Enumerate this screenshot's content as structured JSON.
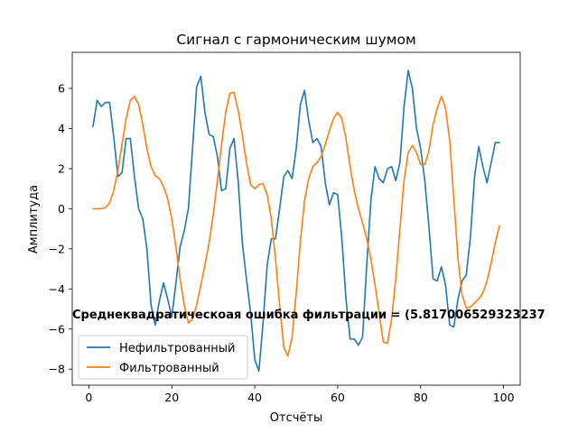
{
  "chart_data": {
    "type": "line",
    "title": "Сигнал с гармоническим шумом",
    "xlabel": "Отсчёты",
    "ylabel": "Амплитуда",
    "xlim": [
      -4,
      104
    ],
    "ylim": [
      -8.8,
      7.8
    ],
    "xticks": [
      0,
      20,
      40,
      60,
      80,
      100
    ],
    "yticks": [
      -8,
      -6,
      -4,
      -2,
      0,
      2,
      4,
      6
    ],
    "grid": false,
    "legend_position": "lower-left",
    "annotation": "Среднеквадратическоая ошибка фильтрации = (5.817006529323237",
    "series": [
      {
        "name": "Нефильтрованный",
        "color": "#1f77b4",
        "x": [
          1,
          2,
          3,
          4,
          5,
          6,
          7,
          8,
          9,
          10,
          11,
          12,
          13,
          14,
          15,
          16,
          17,
          18,
          19,
          20,
          21,
          22,
          23,
          24,
          25,
          26,
          27,
          28,
          29,
          30,
          31,
          32,
          33,
          34,
          35,
          36,
          37,
          38,
          39,
          40,
          41,
          42,
          43,
          44,
          45,
          46,
          47,
          48,
          49,
          50,
          51,
          52,
          53,
          54,
          55,
          56,
          57,
          58,
          59,
          60,
          61,
          62,
          63,
          64,
          65,
          66,
          67,
          68,
          69,
          70,
          71,
          72,
          73,
          74,
          75,
          76,
          77,
          78,
          79,
          80,
          81,
          82,
          83,
          84,
          85,
          86,
          87,
          88,
          89,
          90,
          91,
          92,
          93,
          94,
          95,
          96,
          97,
          98,
          99
        ],
        "values": [
          4.1,
          5.4,
          5.1,
          5.3,
          5.3,
          3.6,
          1.6,
          1.8,
          3.5,
          3.5,
          1.6,
          0.0,
          -0.5,
          -2.0,
          -4.8,
          -5.8,
          -4.6,
          -3.7,
          -4.5,
          -5.4,
          -3.7,
          -1.9,
          -1.1,
          0.0,
          3.0,
          6.1,
          6.6,
          4.8,
          3.7,
          3.6,
          2.6,
          0.9,
          1.0,
          3.0,
          3.5,
          1.4,
          -1.7,
          -3.5,
          -5.2,
          -7.5,
          -8.1,
          -5.7,
          -2.8,
          -1.5,
          -1.5,
          0.0,
          1.6,
          1.9,
          1.5,
          3.0,
          5.2,
          5.9,
          4.4,
          3.3,
          3.5,
          3.1,
          1.3,
          0.2,
          0.8,
          0.7,
          -1.5,
          -4.5,
          -6.5,
          -6.5,
          -6.8,
          -6.4,
          -2.8,
          0.4,
          2.1,
          1.5,
          1.3,
          2.0,
          2.1,
          1.4,
          2.3,
          5.1,
          6.9,
          6.0,
          4.0,
          3.0,
          1.4,
          -0.9,
          -3.5,
          -3.6,
          -2.9,
          -3.8,
          -5.8,
          -5.9,
          -4.5,
          -3.6,
          -3.3,
          -1.4,
          1.6,
          3.1,
          2.1,
          1.3,
          2.3,
          3.3,
          3.3
        ]
      },
      {
        "name": "Фильтрованный",
        "color": "#ff7f0e",
        "x": [
          1,
          2,
          3,
          4,
          5,
          6,
          7,
          8,
          9,
          10,
          11,
          12,
          13,
          14,
          15,
          16,
          17,
          18,
          19,
          20,
          21,
          22,
          23,
          24,
          25,
          26,
          27,
          28,
          29,
          30,
          31,
          32,
          33,
          34,
          35,
          36,
          37,
          38,
          39,
          40,
          41,
          42,
          43,
          44,
          45,
          46,
          47,
          48,
          49,
          50,
          51,
          52,
          53,
          54,
          55,
          56,
          57,
          58,
          59,
          60,
          61,
          62,
          63,
          64,
          65,
          66,
          67,
          68,
          69,
          70,
          71,
          72,
          73,
          74,
          75,
          76,
          77,
          78,
          79,
          80,
          81,
          82,
          83,
          84,
          85,
          86,
          87,
          88,
          89,
          90,
          91,
          92,
          93,
          94,
          95,
          96,
          97,
          98,
          99
        ],
        "values": [
          0.0,
          0.0,
          0.0,
          0.05,
          0.3,
          0.9,
          1.9,
          3.2,
          4.5,
          5.4,
          5.6,
          5.2,
          4.2,
          3.0,
          2.1,
          1.65,
          1.5,
          1.1,
          0.5,
          -0.5,
          -1.9,
          -3.5,
          -4.8,
          -5.7,
          -5.5,
          -4.8,
          -3.8,
          -2.8,
          -1.7,
          -0.3,
          1.4,
          3.2,
          4.8,
          5.75,
          5.8,
          4.9,
          3.7,
          2.3,
          1.2,
          1.0,
          1.2,
          1.25,
          0.7,
          -0.5,
          -2.5,
          -4.8,
          -6.9,
          -7.35,
          -6.4,
          -4.2,
          -1.6,
          0.4,
          1.5,
          2.1,
          2.3,
          2.6,
          3.2,
          3.9,
          4.5,
          4.8,
          4.5,
          3.5,
          2.1,
          0.9,
          0.0,
          -0.7,
          -1.5,
          -2.5,
          -3.8,
          -5.2,
          -6.65,
          -6.7,
          -5.5,
          -3.5,
          -1.0,
          1.4,
          2.8,
          3.15,
          2.8,
          2.2,
          2.2,
          2.9,
          4.2,
          5.0,
          5.6,
          5.0,
          3.4,
          0.5,
          -2.5,
          -4.3,
          -4.95,
          -4.9,
          -4.7,
          -4.5,
          -4.2,
          -3.6,
          -2.7,
          -1.7,
          -0.85
        ]
      }
    ]
  }
}
